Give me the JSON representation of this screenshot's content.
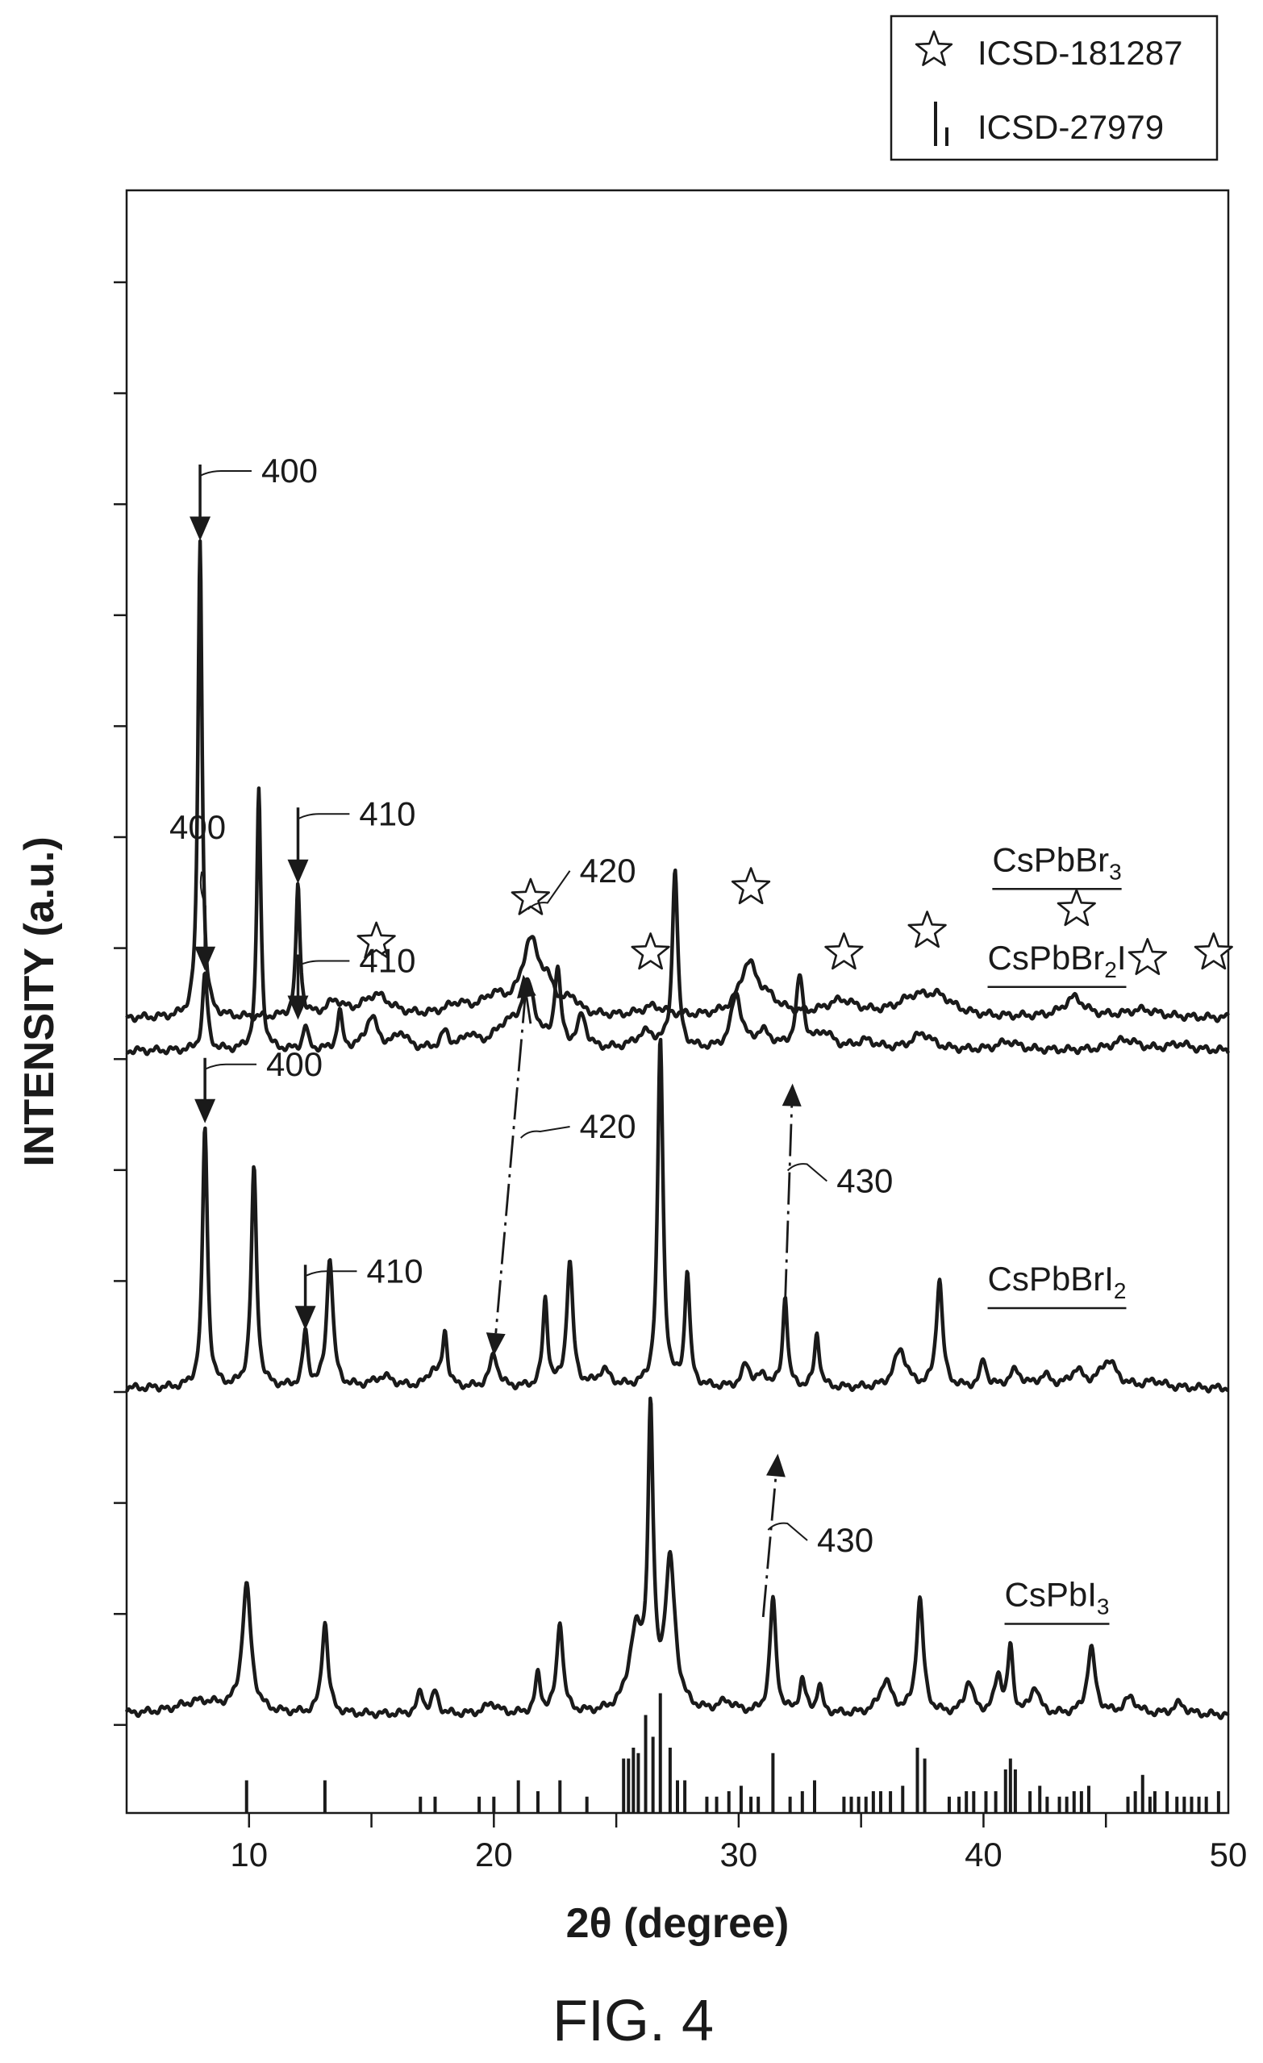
{
  "figure_caption": "FIG. 4",
  "legend": {
    "items": [
      {
        "symbol": "star-icon",
        "label": "ICSD-181287"
      },
      {
        "symbol": "reference-sticks-icon",
        "label": "ICSD-27979"
      }
    ],
    "placement": "top-right, outside plot"
  },
  "chart_data": {
    "type": "line",
    "title": "",
    "xlabel": "2θ (degree)",
    "ylabel": "INTENSITY (a.u.)",
    "xlim": [
      5,
      50
    ],
    "xticks": [
      10,
      20,
      30,
      40,
      50
    ],
    "y_tick_labels_shown": false,
    "grid": false,
    "stacked_offset": true,
    "series": [
      {
        "name": "CsPbBr3",
        "label_main": "CsPbBr",
        "label_sub": "3",
        "baseline": 7,
        "peaks": [
          [
            8.0,
            44,
            0.1
          ],
          [
            12.0,
            12,
            0.1
          ],
          [
            13.5,
            1.3,
            0.4
          ],
          [
            15.2,
            2.0,
            0.7
          ],
          [
            18.5,
            1.0,
            0.6
          ],
          [
            20.0,
            1.6,
            0.6
          ],
          [
            21.5,
            6.5,
            0.45
          ],
          [
            22.2,
            2.0,
            0.4
          ],
          [
            23.2,
            1.3,
            0.3
          ],
          [
            26.5,
            0.9,
            0.6
          ],
          [
            30.4,
            4.6,
            0.45
          ],
          [
            31.2,
            1.2,
            0.6
          ],
          [
            34.2,
            1.4,
            0.8
          ],
          [
            37.2,
            1.6,
            0.9
          ],
          [
            38.2,
            1.4,
            0.7
          ],
          [
            43.7,
            1.8,
            0.5
          ],
          [
            46.5,
            0.7,
            0.8
          ]
        ]
      },
      {
        "name": "CsPbBr2I",
        "label_main": "CsPbBr",
        "label_sub": "2",
        "label_tail": "I",
        "baseline": 4,
        "peaks": [
          [
            8.2,
            7,
            0.12
          ],
          [
            10.4,
            24,
            0.1
          ],
          [
            12.3,
            2.2,
            0.12
          ],
          [
            13.7,
            3.5,
            0.12
          ],
          [
            15.0,
            3.0,
            0.3
          ],
          [
            16.2,
            1.5,
            0.3
          ],
          [
            18.0,
            1.5,
            0.2
          ],
          [
            19.0,
            1.2,
            0.3
          ],
          [
            20.5,
            2.0,
            0.6
          ],
          [
            21.4,
            5.5,
            0.35
          ],
          [
            22.6,
            7.0,
            0.15
          ],
          [
            23.6,
            3.0,
            0.2
          ],
          [
            26.2,
            1.5,
            0.5
          ],
          [
            27.4,
            16.5,
            0.13
          ],
          [
            29.9,
            5.0,
            0.25
          ],
          [
            31.0,
            1.5,
            0.4
          ],
          [
            32.5,
            6.5,
            0.18
          ],
          [
            33.5,
            1.5,
            0.4
          ],
          [
            35.2,
            0.8,
            0.5
          ],
          [
            37.5,
            1.5,
            0.5
          ],
          [
            41.0,
            0.8,
            0.5
          ],
          [
            45.8,
            1.0,
            0.6
          ],
          [
            48.0,
            0.6,
            0.5
          ]
        ]
      },
      {
        "name": "CsPbBrI2",
        "label_main": "CsPbBrI",
        "label_sub": "2",
        "baseline": -27,
        "peaks": [
          [
            8.2,
            24,
            0.12
          ],
          [
            10.2,
            20,
            0.13
          ],
          [
            12.3,
            5,
            0.12
          ],
          [
            13.3,
            12,
            0.15
          ],
          [
            15.5,
            1.0,
            0.5
          ],
          [
            17.5,
            1.5,
            0.25
          ],
          [
            18.0,
            5.0,
            0.12
          ],
          [
            20.0,
            3.0,
            0.2
          ],
          [
            22.1,
            8.0,
            0.12
          ],
          [
            23.1,
            11.5,
            0.15
          ],
          [
            24.5,
            1.5,
            0.3
          ],
          [
            26.8,
            32,
            0.13
          ],
          [
            27.9,
            10.5,
            0.12
          ],
          [
            30.3,
            2.0,
            0.2
          ],
          [
            31.0,
            1.0,
            0.3
          ],
          [
            31.9,
            8.5,
            0.11
          ],
          [
            33.2,
            5.0,
            0.12
          ],
          [
            36.6,
            3.5,
            0.3
          ],
          [
            38.2,
            10,
            0.15
          ],
          [
            40.0,
            2.5,
            0.15
          ],
          [
            41.3,
            1.5,
            0.3
          ],
          [
            42.5,
            1.0,
            0.3
          ],
          [
            43.8,
            1.5,
            0.3
          ],
          [
            45.1,
            2.5,
            0.4
          ],
          [
            47.0,
            0.6,
            0.4
          ]
        ]
      },
      {
        "name": "CsPbI3",
        "label_main": "CsPbI",
        "label_sub": "3",
        "baseline": -57,
        "peaks": [
          [
            8.0,
            1.2,
            1.2
          ],
          [
            9.9,
            11.5,
            0.22
          ],
          [
            13.1,
            8.5,
            0.15
          ],
          [
            17.0,
            2.0,
            0.15
          ],
          [
            17.6,
            2.0,
            0.15
          ],
          [
            19.9,
            1.0,
            0.3
          ],
          [
            21.8,
            3.5,
            0.13
          ],
          [
            22.7,
            8.5,
            0.15
          ],
          [
            25.8,
            7.0,
            0.35
          ],
          [
            26.4,
            26,
            0.13
          ],
          [
            27.2,
            13.5,
            0.25
          ],
          [
            29.5,
            1.0,
            0.4
          ],
          [
            31.4,
            10.5,
            0.15
          ],
          [
            32.6,
            3.0,
            0.15
          ],
          [
            33.3,
            2.5,
            0.13
          ],
          [
            36.0,
            3.0,
            0.3
          ],
          [
            37.4,
            10.5,
            0.17
          ],
          [
            39.4,
            3.0,
            0.2
          ],
          [
            40.6,
            3.5,
            0.17
          ],
          [
            41.1,
            6.0,
            0.12
          ],
          [
            42.1,
            2.5,
            0.2
          ],
          [
            44.4,
            6.0,
            0.2
          ],
          [
            46.0,
            1.5,
            0.3
          ],
          [
            48.0,
            1.0,
            0.3
          ]
        ]
      }
    ],
    "reference_ticks": {
      "name": "ICSD-27979",
      "positions": [
        9.9,
        13.1,
        17.0,
        17.6,
        19.4,
        20.0,
        21.0,
        21.8,
        22.7,
        23.8,
        25.3,
        25.5,
        25.7,
        25.9,
        26.2,
        26.5,
        26.8,
        27.2,
        27.5,
        27.8,
        28.7,
        29.1,
        29.6,
        30.1,
        30.5,
        30.8,
        31.4,
        32.1,
        32.6,
        33.1,
        34.3,
        34.6,
        34.9,
        35.2,
        35.5,
        35.8,
        36.2,
        36.7,
        37.3,
        37.6,
        38.6,
        39.0,
        39.3,
        39.6,
        40.1,
        40.5,
        40.9,
        41.1,
        41.3,
        41.9,
        42.3,
        42.6,
        43.1,
        43.4,
        43.7,
        44.0,
        44.3,
        45.9,
        46.2,
        46.5,
        46.8,
        47.0,
        47.5,
        47.9,
        48.2,
        48.5,
        48.8,
        49.1,
        49.6
      ],
      "heights": [
        3,
        3,
        1.5,
        1.5,
        1.5,
        1.5,
        3,
        2,
        3,
        1.5,
        5,
        5,
        6,
        5.5,
        9,
        7,
        11,
        6,
        3,
        3,
        1.5,
        1.5,
        2,
        2.5,
        1.5,
        1.5,
        5.5,
        1.5,
        2,
        3,
        1.5,
        1.5,
        1.5,
        1.5,
        2,
        2,
        2,
        2.5,
        6,
        5,
        1.5,
        1.5,
        2,
        2,
        2,
        2,
        4,
        5,
        4,
        2,
        2.5,
        1.5,
        1.5,
        1.5,
        2,
        2,
        2.5,
        1.5,
        2,
        3.5,
        1.5,
        2,
        2,
        1.5,
        1.5,
        1.5,
        1.5,
        1.5,
        2
      ]
    },
    "star_markers": [
      {
        "x": 15.2,
        "y": 14
      },
      {
        "x": 21.5,
        "y": 18
      },
      {
        "x": 26.4,
        "y": 13
      },
      {
        "x": 30.5,
        "y": 19
      },
      {
        "x": 34.3,
        "y": 13
      },
      {
        "x": 37.7,
        "y": 15
      },
      {
        "x": 43.8,
        "y": 17
      },
      {
        "x": 46.7,
        "y": 12.5
      },
      {
        "x": 49.4,
        "y": 13
      }
    ],
    "callouts": [
      {
        "text": "400",
        "peak_x": 8.0,
        "peak_y": 51,
        "arrow_len": 7,
        "label_dx": 2.5,
        "label_dy": 3,
        "leader": "right"
      },
      {
        "text": "410",
        "peak_x": 12.0,
        "peak_y": 19.5,
        "arrow_len": 7,
        "label_dx": 2.5,
        "label_dy": 3,
        "leader": "right"
      },
      {
        "text": "400",
        "peak_x": 8.2,
        "peak_y": 11.5,
        "arrow_len": 6,
        "label_dx": -0.3,
        "label_dy": 12,
        "leader": "up"
      },
      {
        "text": "410",
        "peak_x": 12.0,
        "peak_y": 7,
        "arrow_len": 6,
        "label_dx": 2.5,
        "label_dy": 3,
        "leader": "right"
      },
      {
        "text": "400",
        "peak_x": 8.2,
        "peak_y": -2.5,
        "arrow_len": 6,
        "label_dx": 2.5,
        "label_dy": 3,
        "leader": "right"
      },
      {
        "text": "410",
        "peak_x": 12.3,
        "peak_y": -21.5,
        "arrow_len": 6,
        "label_dx": 2.5,
        "label_dy": 3,
        "leader": "right"
      }
    ],
    "shift_arrows": [
      {
        "text": "420",
        "from": [
          21.5,
          6.5
        ],
        "to": [
          21.2,
          11
        ],
        "label_at": [
          23.5,
          19.5
        ],
        "leader_from": [
          21.4,
          17
        ]
      },
      {
        "text": "420",
        "from": [
          21.3,
          9.5
        ],
        "to": [
          20.0,
          -24
        ],
        "label_at": [
          23.5,
          -4
        ],
        "leader_from": [
          21.1,
          -4
        ]
      },
      {
        "text": "430",
        "from": [
          31.9,
          -19
        ],
        "to": [
          32.2,
          1
        ],
        "label_at": [
          34.0,
          -9
        ],
        "leader_from": [
          32.0,
          -7
        ]
      },
      {
        "text": "430",
        "from": [
          31.0,
          -48
        ],
        "to": [
          31.6,
          -33
        ],
        "label_at": [
          33.2,
          -42
        ],
        "leader_from": [
          31.2,
          -40
        ]
      }
    ],
    "label_positions": [
      {
        "x": 43.0,
        "y": 20.5
      },
      {
        "x": 43.0,
        "y": 11.5
      },
      {
        "x": 43.0,
        "y": -18
      },
      {
        "x": 43.0,
        "y": -47
      }
    ]
  }
}
